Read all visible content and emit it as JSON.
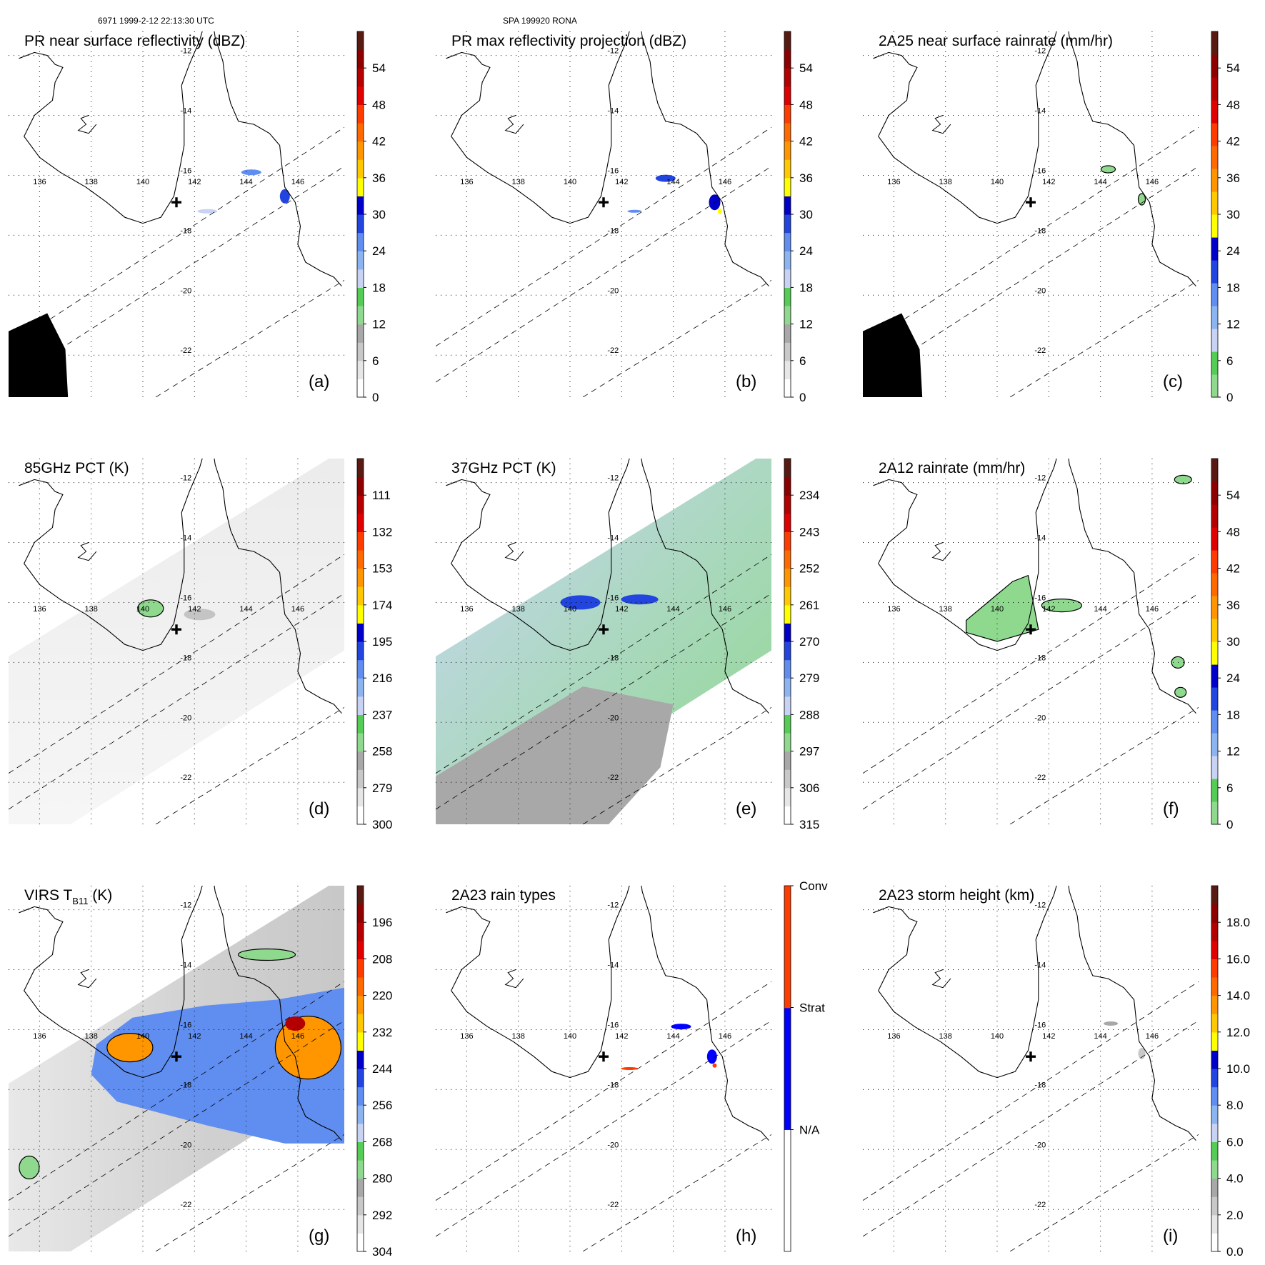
{
  "header": {
    "orbit_info": "6971 1999-2-12 22:13:30 UTC",
    "case_info": "SPA 199920 RONA"
  },
  "map": {
    "lon_labels": [
      "136",
      "138",
      "140",
      "142",
      "144",
      "146"
    ],
    "lat_labels": [
      "-12",
      "-14",
      "-16",
      "-18",
      "-20",
      "-22"
    ],
    "lon_values": [
      136,
      138,
      140,
      142,
      144,
      146
    ],
    "lat_values": [
      -12,
      -14,
      -16,
      -18,
      -20,
      -22
    ],
    "lon_range": [
      134.8,
      147.8
    ],
    "lat_range": [
      -23.4,
      -11.2
    ],
    "marker_lonlat": [
      141.3,
      -16.9
    ],
    "swath_edges": [
      [
        [
          134.8,
          -22.9
        ],
        [
          147.8,
          -15.7
        ]
      ],
      [
        [
          140.5,
          -23.4
        ],
        [
          147.8,
          -19.5
        ]
      ],
      [
        [
          134.8,
          -21.7
        ],
        [
          147.8,
          -14.4
        ]
      ]
    ]
  },
  "panels": [
    {
      "id": "a",
      "title": "PR near surface reflectivity (dBZ)",
      "title_sub": "",
      "title_post": "",
      "label": "(a)",
      "colorbar": {
        "ticks": [
          "54",
          "48",
          "42",
          "36",
          "30",
          "24",
          "18",
          "12",
          "6",
          "0"
        ],
        "colors": [
          "#ffffff",
          "#e6e6e6",
          "#c8c8c8",
          "#a8a8a8",
          "#8fd98f",
          "#55cc55",
          "#c8d2f2",
          "#8cb4f0",
          "#5f8ef0",
          "#2245e0",
          "#0000c8",
          "#ffff00",
          "#ffc800",
          "#ff9600",
          "#ff6a00",
          "#ff3c00",
          "#e10000",
          "#b40000",
          "#8c0000",
          "#5a1a14"
        ],
        "tick_fracs": [
          0.1,
          0.2,
          0.3,
          0.4,
          0.5,
          0.6,
          0.7,
          0.8,
          0.9,
          1.0
        ]
      }
    },
    {
      "id": "b",
      "title": "PR max reflectivity projection (dBZ)",
      "title_sub": "",
      "title_post": "",
      "label": "(b)",
      "colorbar": {
        "ticks": [
          "54",
          "48",
          "42",
          "36",
          "30",
          "24",
          "18",
          "12",
          "6",
          "0"
        ],
        "colors": [
          "#ffffff",
          "#e6e6e6",
          "#c8c8c8",
          "#a8a8a8",
          "#8fd98f",
          "#55cc55",
          "#c8d2f2",
          "#8cb4f0",
          "#5f8ef0",
          "#2245e0",
          "#0000c8",
          "#ffff00",
          "#ffc800",
          "#ff9600",
          "#ff6a00",
          "#ff3c00",
          "#e10000",
          "#b40000",
          "#8c0000",
          "#5a1a14"
        ],
        "tick_fracs": [
          0.1,
          0.2,
          0.3,
          0.4,
          0.5,
          0.6,
          0.7,
          0.8,
          0.9,
          1.0
        ]
      }
    },
    {
      "id": "c",
      "title": "2A25 near surface rainrate (mm/hr)",
      "title_sub": "",
      "title_post": "",
      "label": "(c)",
      "colorbar": {
        "ticks": [
          "54",
          "48",
          "42",
          "36",
          "30",
          "24",
          "18",
          "12",
          "6",
          "0"
        ],
        "colors": [
          "#8fd98f",
          "#55cc55",
          "#c8d2f2",
          "#8cb4f0",
          "#5f8ef0",
          "#2245e0",
          "#0000c8",
          "#ffff00",
          "#ffc800",
          "#ff9600",
          "#ff6a00",
          "#ff3c00",
          "#e10000",
          "#b40000",
          "#8c0000",
          "#5a1a14"
        ],
        "tick_fracs": [
          0.1,
          0.2,
          0.3,
          0.4,
          0.5,
          0.6,
          0.7,
          0.8,
          0.9,
          1.0
        ]
      }
    },
    {
      "id": "d",
      "title": "85GHz PCT (K)",
      "title_sub": "",
      "title_post": "",
      "label": "(d)",
      "colorbar": {
        "ticks": [
          "111",
          "132",
          "153",
          "174",
          "195",
          "216",
          "237",
          "258",
          "279",
          "300"
        ],
        "colors": [
          "#ffffff",
          "#e6e6e6",
          "#c8c8c8",
          "#a8a8a8",
          "#8fd98f",
          "#55cc55",
          "#c8d2f2",
          "#8cb4f0",
          "#5f8ef0",
          "#2245e0",
          "#0000c8",
          "#ffff00",
          "#ffc800",
          "#ff9600",
          "#ff6a00",
          "#ff3c00",
          "#e10000",
          "#b40000",
          "#8c0000",
          "#5a1a14"
        ],
        "tick_fracs": [
          0.1,
          0.2,
          0.3,
          0.4,
          0.5,
          0.6,
          0.7,
          0.8,
          0.9,
          1.0
        ]
      }
    },
    {
      "id": "e",
      "title": "37GHz PCT (K)",
      "title_sub": "",
      "title_post": "",
      "label": "(e)",
      "colorbar": {
        "ticks": [
          "234",
          "243",
          "252",
          "261",
          "270",
          "279",
          "288",
          "297",
          "306",
          "315"
        ],
        "colors": [
          "#ffffff",
          "#e6e6e6",
          "#c8c8c8",
          "#a8a8a8",
          "#8fd98f",
          "#55cc55",
          "#c8d2f2",
          "#8cb4f0",
          "#5f8ef0",
          "#2245e0",
          "#0000c8",
          "#ffff00",
          "#ffc800",
          "#ff9600",
          "#ff6a00",
          "#ff3c00",
          "#e10000",
          "#b40000",
          "#8c0000",
          "#5a1a14"
        ],
        "tick_fracs": [
          0.1,
          0.2,
          0.3,
          0.4,
          0.5,
          0.6,
          0.7,
          0.8,
          0.9,
          1.0
        ]
      }
    },
    {
      "id": "f",
      "title": "2A12 rainrate (mm/hr)",
      "title_sub": "",
      "title_post": "",
      "label": "(f)",
      "colorbar": {
        "ticks": [
          "54",
          "48",
          "42",
          "36",
          "30",
          "24",
          "18",
          "12",
          "6",
          "0"
        ],
        "colors": [
          "#8fd98f",
          "#55cc55",
          "#c8d2f2",
          "#8cb4f0",
          "#5f8ef0",
          "#2245e0",
          "#0000c8",
          "#ffff00",
          "#ffc800",
          "#ff9600",
          "#ff6a00",
          "#ff3c00",
          "#e10000",
          "#b40000",
          "#8c0000",
          "#5a1a14"
        ],
        "tick_fracs": [
          0.1,
          0.2,
          0.3,
          0.4,
          0.5,
          0.6,
          0.7,
          0.8,
          0.9,
          1.0
        ]
      }
    },
    {
      "id": "g",
      "title": "VIRS T",
      "title_sub": "B11",
      "title_post": " (K)",
      "label": "(g)",
      "colorbar": {
        "ticks": [
          "196",
          "208",
          "220",
          "232",
          "244",
          "256",
          "268",
          "280",
          "292",
          "304"
        ],
        "colors": [
          "#ffffff",
          "#e6e6e6",
          "#c8c8c8",
          "#a8a8a8",
          "#8fd98f",
          "#55cc55",
          "#c8d2f2",
          "#8cb4f0",
          "#5f8ef0",
          "#2245e0",
          "#0000c8",
          "#ffff00",
          "#ffc800",
          "#ff9600",
          "#ff6a00",
          "#ff3c00",
          "#e10000",
          "#b40000",
          "#8c0000",
          "#5a1a14"
        ],
        "tick_fracs": [
          0.1,
          0.2,
          0.3,
          0.4,
          0.5,
          0.6,
          0.7,
          0.8,
          0.9,
          1.0
        ]
      }
    },
    {
      "id": "h",
      "title": "2A23 rain types",
      "title_sub": "",
      "title_post": "",
      "label": "(h)",
      "colorbar": {
        "ticks": [
          "Conv",
          "Strat",
          "N/A"
        ],
        "colors": [
          "#ffffff",
          "#0000ff",
          "#ff3c00"
        ],
        "tick_fracs": [
          0.0,
          0.333,
          0.667
        ]
      }
    },
    {
      "id": "i",
      "title": "2A23 storm height (km)",
      "title_sub": "",
      "title_post": "",
      "label": "(i)",
      "colorbar": {
        "ticks": [
          "18.0",
          "16.0",
          "14.0",
          "12.0",
          "10.0",
          "8.0",
          "6.0",
          "4.0",
          "2.0",
          "0.0"
        ],
        "colors": [
          "#ffffff",
          "#e6e6e6",
          "#c8c8c8",
          "#a8a8a8",
          "#8fd98f",
          "#55cc55",
          "#c8d2f2",
          "#8cb4f0",
          "#5f8ef0",
          "#2245e0",
          "#0000c8",
          "#ffff00",
          "#ffc800",
          "#ff9600",
          "#ff6a00",
          "#ff3c00",
          "#e10000",
          "#b40000",
          "#8c0000",
          "#5a1a14"
        ],
        "tick_fracs": [
          0.1,
          0.2,
          0.3,
          0.4,
          0.5,
          0.6,
          0.7,
          0.8,
          0.9,
          1.0
        ]
      }
    }
  ]
}
